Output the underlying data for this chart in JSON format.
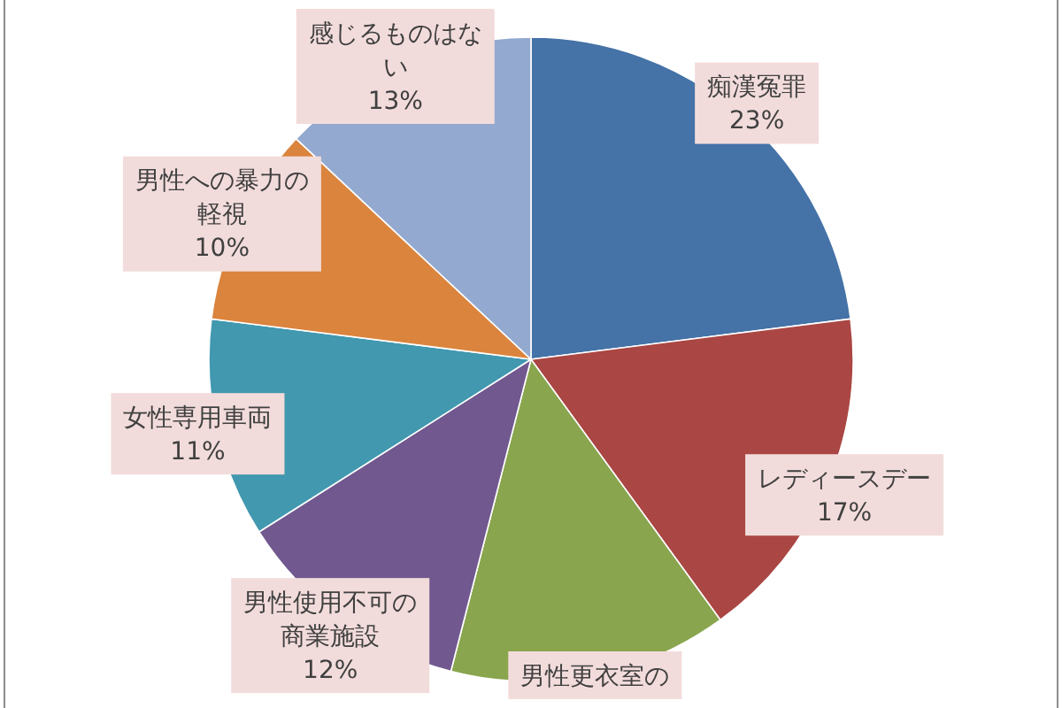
{
  "chart_data": {
    "type": "pie",
    "categories": [
      "痴漢冤罪",
      "レディースデー",
      "男性更衣室の",
      "男性使用不可の商業施設",
      "女性専用車両",
      "男性への暴力の軽視",
      "感じるものはない"
    ],
    "values": [
      23,
      17,
      14,
      12,
      11,
      10,
      13
    ],
    "colors": [
      "#4572a7",
      "#aa4643",
      "#89a54e",
      "#71588f",
      "#4198af",
      "#db843d",
      "#93a9cf"
    ],
    "value_labels": [
      "23%",
      "17%",
      null,
      "12%",
      "11%",
      "10%",
      "13%"
    ]
  }
}
